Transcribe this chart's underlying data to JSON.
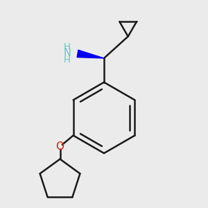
{
  "bg_color": "#ebebeb",
  "line_color": "#1a1a1a",
  "bond_width": 1.8,
  "N_color": "#5bc8c8",
  "NH_color": "#5bc8c8",
  "O_color": "#cc2200",
  "wedge_color": "#0000ee",
  "figsize": [
    3.0,
    3.0
  ],
  "dpi": 100,
  "xlim": [
    0.05,
    0.95
  ],
  "ylim": [
    0.05,
    0.95
  ]
}
